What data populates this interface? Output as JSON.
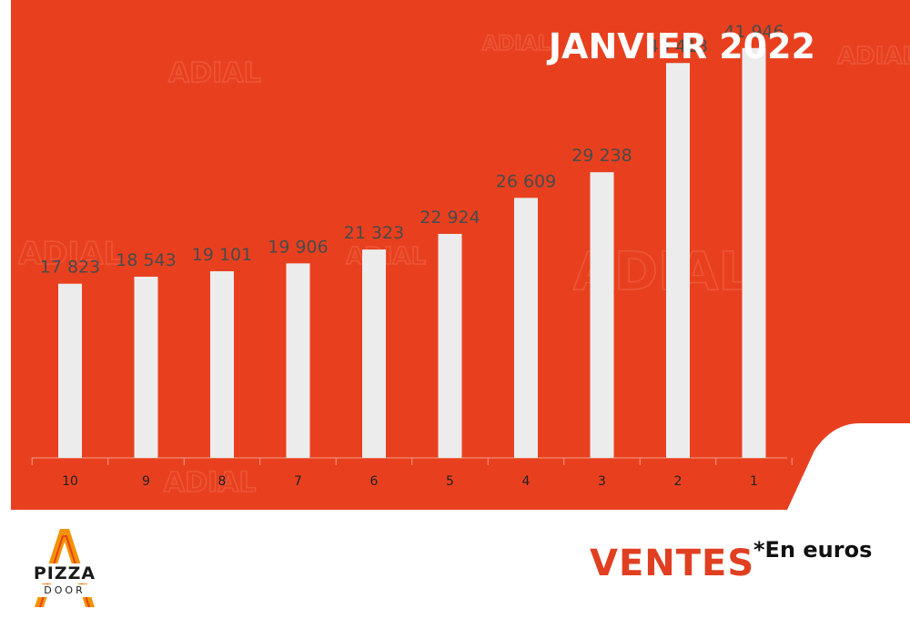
{
  "colors": {
    "panel": "#e8401f",
    "bar": "#ececec",
    "accent": "#e13f21"
  },
  "chart_data": {
    "type": "bar",
    "title": "JANVIER 2022",
    "categories": [
      "10",
      "9",
      "8",
      "7",
      "6",
      "5",
      "4",
      "3",
      "2",
      "1"
    ],
    "values": [
      17823,
      18543,
      19101,
      19906,
      21323,
      22924,
      26609,
      29238,
      40413,
      41946
    ],
    "value_labels": [
      "17 823",
      "18 543",
      "19 101",
      "19 906",
      "21 323",
      "22 924",
      "26 609",
      "29 238",
      "40 413",
      "41 946"
    ],
    "ylim": [
      0,
      45000
    ],
    "grid": false,
    "legend": "none"
  },
  "footer": {
    "ventes": "VENTES",
    "note": "*En euros"
  },
  "logo": {
    "word": "PIZZA",
    "sub": "DOOR"
  },
  "watermark": "ADIAL"
}
